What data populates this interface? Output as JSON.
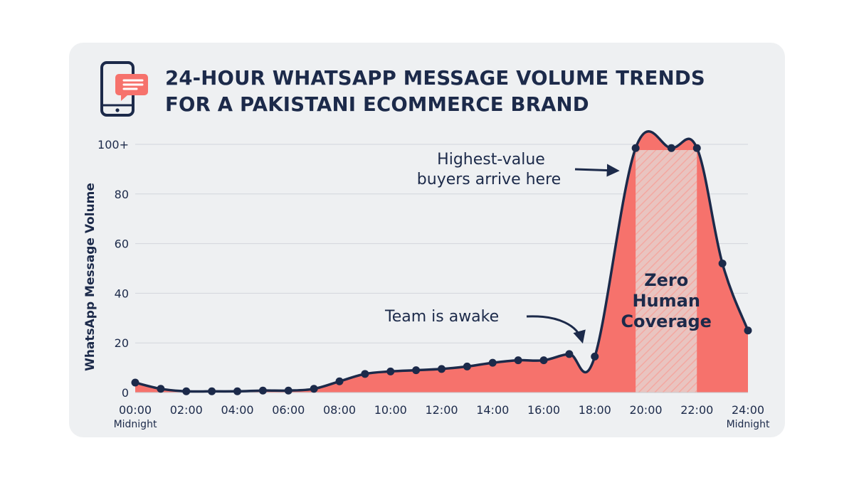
{
  "title_lines": [
    "24-HOUR WHATSAPP MESSAGE VOLUME TRENDS",
    "FOR A PAKISTANI ECOMMERCE BRAND"
  ],
  "icon": "phone-chat-icon",
  "colors": {
    "line": "#1c2a4a",
    "fill": "#f6726c",
    "highlight_band": "#e8c8c4",
    "card_background": "#eef0f2",
    "grid": "#d2d6dc",
    "icon_bubble": "#f6726c"
  },
  "chart_data": {
    "type": "area",
    "title": "24-HOUR WHATSAPP MESSAGE VOLUME TRENDS FOR A PAKISTANI ECOMMERCE BRAND",
    "xlabel": "",
    "ylabel": "WhatsApp Message Volume",
    "x_ticks": [
      "00:00",
      "02:00",
      "04:00",
      "06:00",
      "08:00",
      "10:00",
      "12:00",
      "14:00",
      "16:00",
      "18:00",
      "20:00",
      "22:00",
      "24:00"
    ],
    "x_tick_sublabels": {
      "00:00": "Midnight",
      "24:00": "Midnight"
    },
    "y_ticks": [
      "0",
      "20",
      "40",
      "60",
      "80",
      "100+"
    ],
    "xlim": [
      0,
      24
    ],
    "ylim": [
      0,
      100
    ],
    "grid": true,
    "series": [
      {
        "x": [
          0,
          1,
          2,
          3,
          4,
          5,
          6,
          7,
          8,
          9,
          10,
          11,
          12,
          13,
          14,
          15,
          16,
          17,
          18,
          19.6,
          21,
          22,
          23,
          24
        ],
        "values": [
          4,
          1.5,
          0.5,
          0.5,
          0.5,
          0.8,
          0.8,
          1.5,
          4.5,
          7.5,
          8.5,
          9,
          9.5,
          10.5,
          12,
          13,
          13,
          15.5,
          14.5,
          98.5,
          98.5,
          98.5,
          52,
          25
        ]
      }
    ],
    "highlight_range": {
      "x": [
        19.6,
        22
      ],
      "label": "Zero Human Coverage"
    },
    "annotations": [
      {
        "text": "Team is awake",
        "points_to_x": 18
      },
      {
        "text": "Highest-value buyers arrive here",
        "points_to_x": 19.6
      }
    ]
  }
}
